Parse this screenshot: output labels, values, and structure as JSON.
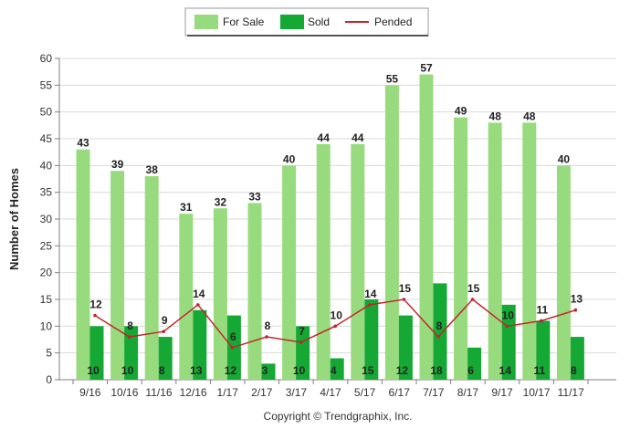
{
  "chart_data": {
    "type": "bar",
    "categories": [
      "9/16",
      "10/16",
      "11/16",
      "12/16",
      "1/17",
      "2/17",
      "3/17",
      "4/17",
      "5/17",
      "6/17",
      "7/17",
      "8/17",
      "9/17",
      "10/17",
      "11/17"
    ],
    "series": [
      {
        "name": "For Sale",
        "kind": "bar",
        "color": "#98db7e",
        "values": [
          43,
          39,
          38,
          31,
          32,
          33,
          40,
          44,
          44,
          55,
          57,
          49,
          48,
          48,
          40
        ]
      },
      {
        "name": "Sold",
        "kind": "bar",
        "color": "#16a834",
        "values": [
          10,
          10,
          8,
          13,
          12,
          3,
          10,
          4,
          15,
          12,
          18,
          6,
          14,
          11,
          8
        ]
      },
      {
        "name": "Pended",
        "kind": "line",
        "color": "#c0272d",
        "values": [
          12,
          8,
          9,
          14,
          6,
          8,
          7,
          10,
          14,
          15,
          8,
          15,
          10,
          11,
          13
        ]
      }
    ],
    "ylabel": "Number of Homes",
    "xlabel": "",
    "ylim": [
      0,
      60
    ],
    "yticks": [
      0,
      5,
      10,
      15,
      20,
      25,
      30,
      35,
      40,
      45,
      50,
      55,
      60
    ],
    "grid": true,
    "legend_position": "top-center"
  },
  "footer": "Copyright © Trendgraphix, Inc."
}
